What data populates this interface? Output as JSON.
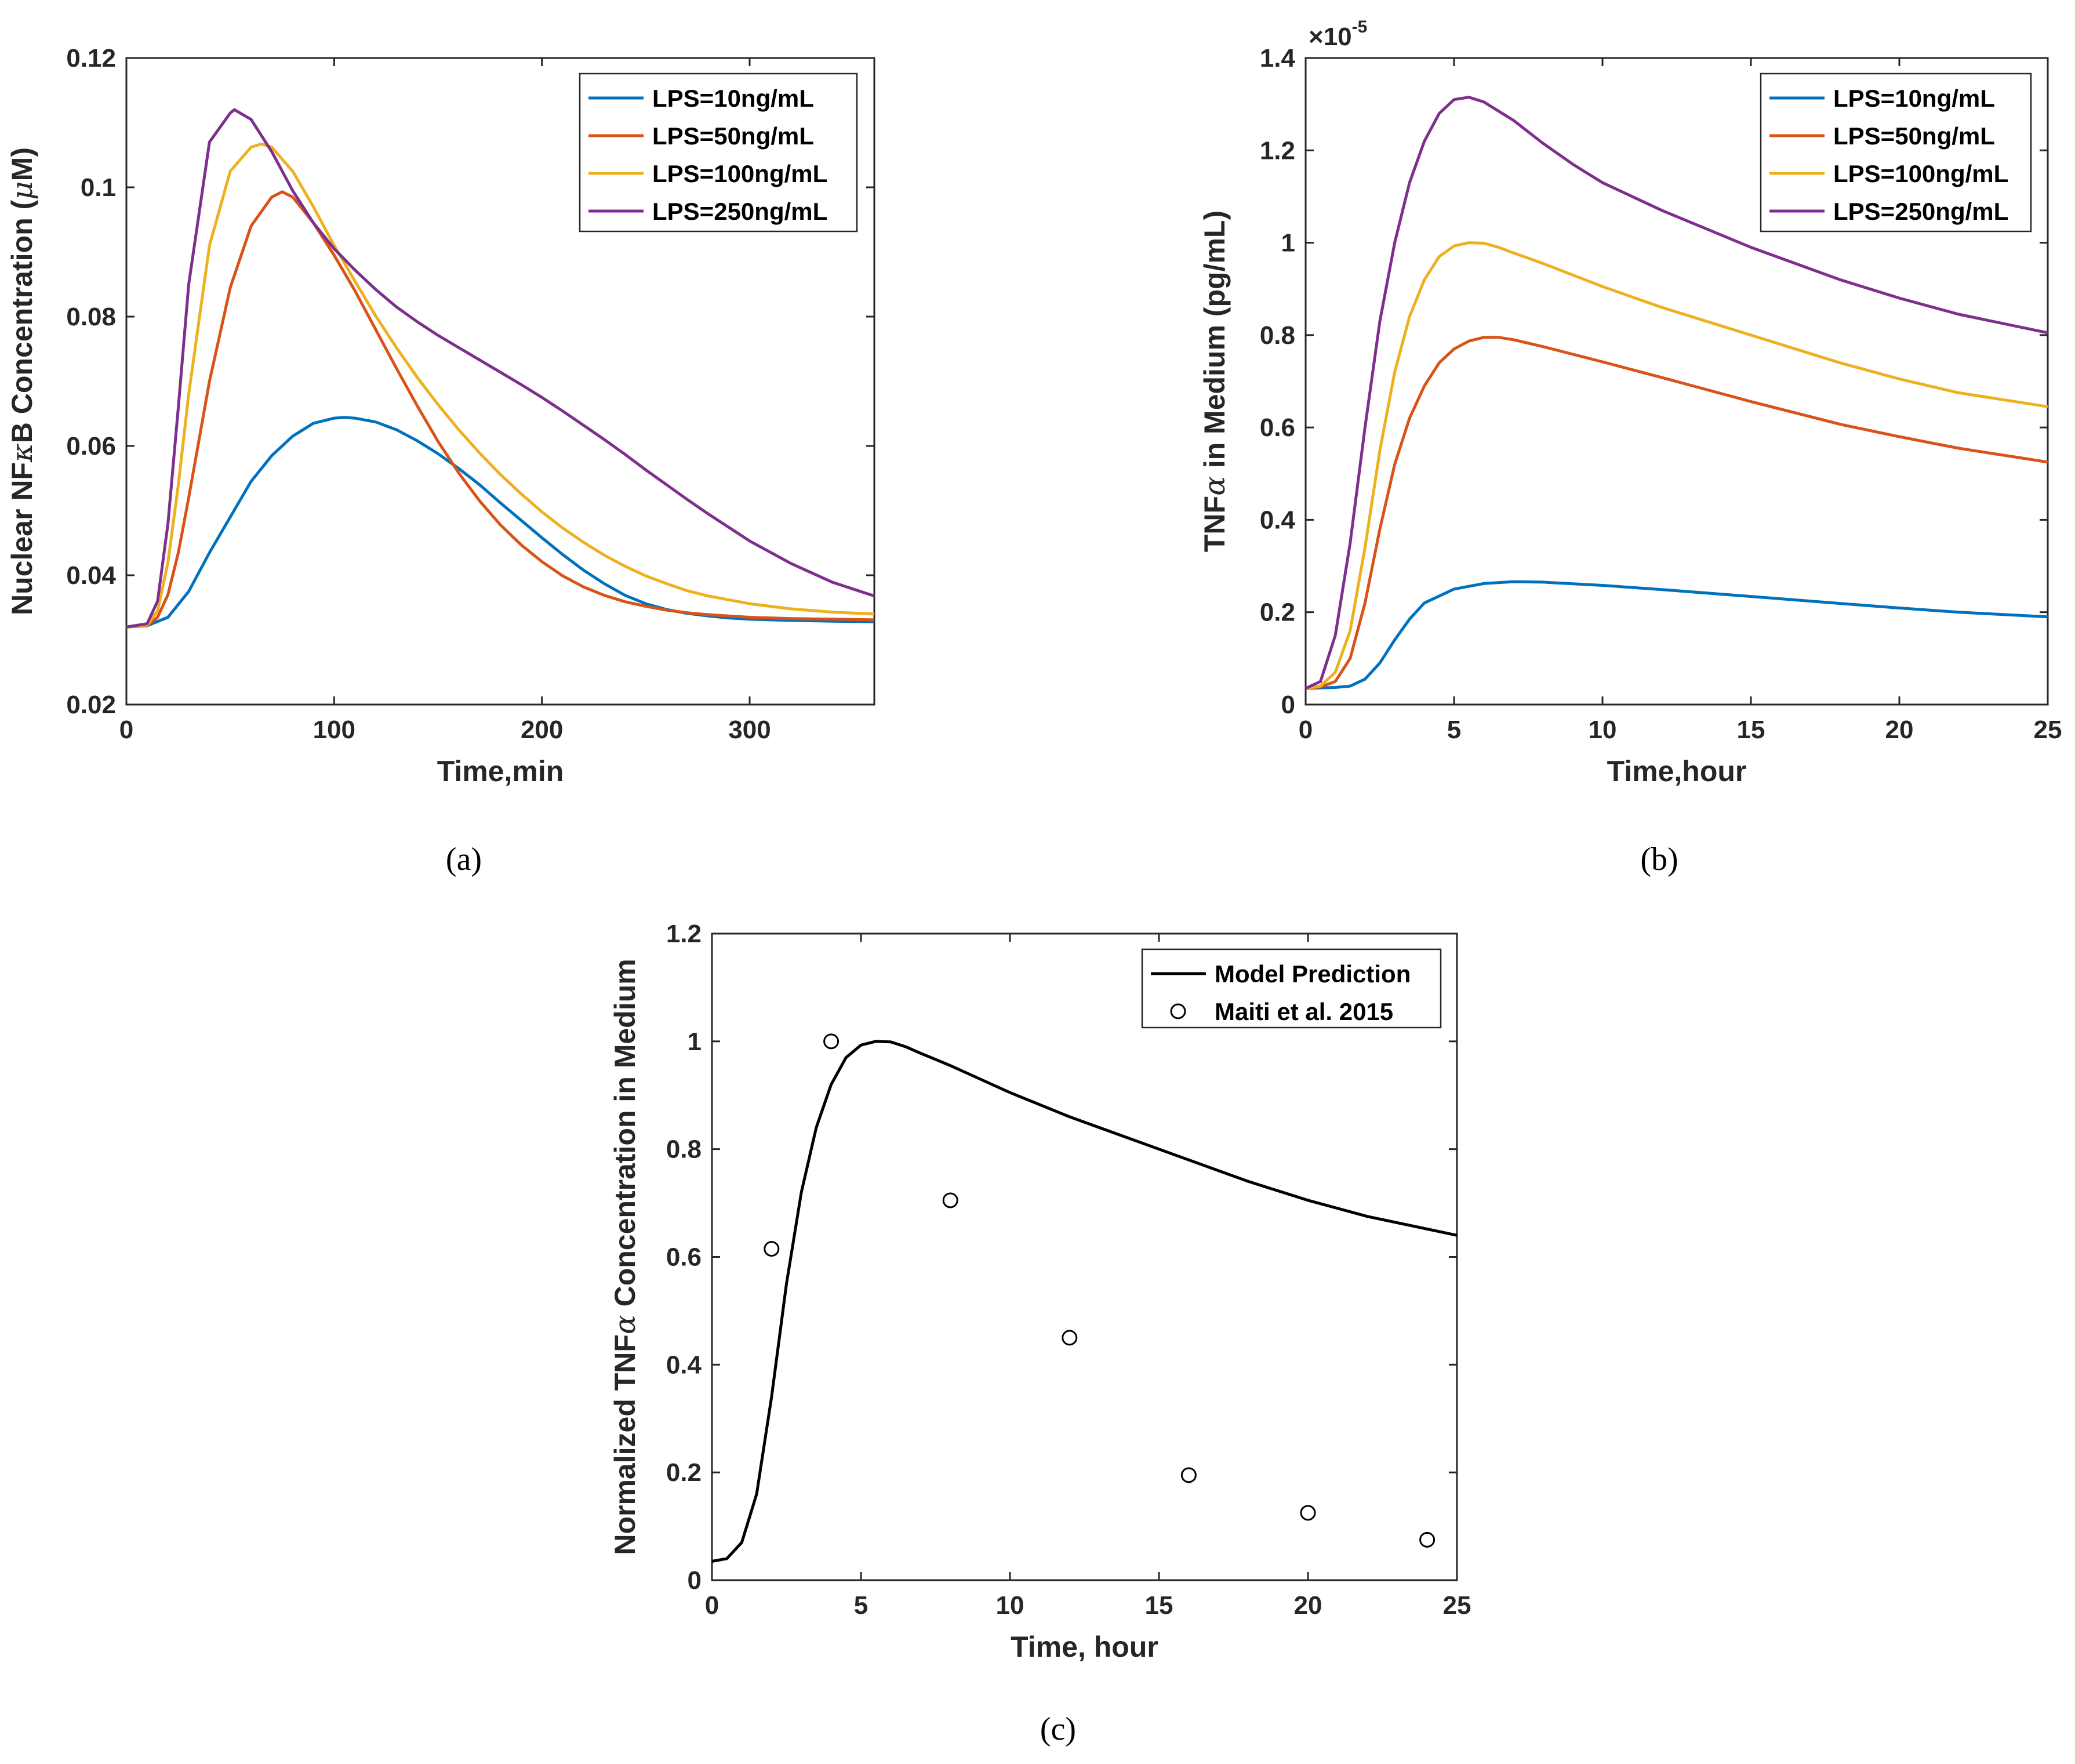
{
  "chart_data": [
    {
      "id": "a",
      "type": "line",
      "caption": "(a)",
      "xlabel": "Time,min",
      "ylabel_parts": [
        "Nuclear NF",
        "κ",
        "B Concentration (",
        "μ",
        "M)"
      ],
      "xlim": [
        0,
        360
      ],
      "ylim": [
        0.02,
        0.12
      ],
      "xticks": [
        0,
        100,
        200,
        300
      ],
      "yticks": [
        0.02,
        0.04,
        0.06,
        0.08,
        0.1,
        0.12
      ],
      "xtick_labels": [
        "0",
        "100",
        "200",
        "300"
      ],
      "ytick_labels": [
        "0.02",
        "0.04",
        "0.06",
        "0.08",
        "0.1",
        "0.12"
      ],
      "legend_position": "top-right",
      "series": [
        {
          "name": "LPS=10ng/mL",
          "color": "#0072BD",
          "x": [
            0,
            10,
            20,
            30,
            40,
            50,
            60,
            70,
            80,
            90,
            100,
            105,
            110,
            120,
            130,
            140,
            150,
            160,
            170,
            180,
            190,
            200,
            210,
            220,
            230,
            240,
            250,
            260,
            270,
            280,
            290,
            300,
            320,
            340,
            360
          ],
          "y": [
            0.032,
            0.0322,
            0.0335,
            0.0375,
            0.0435,
            0.049,
            0.0545,
            0.0585,
            0.0615,
            0.0635,
            0.0643,
            0.0644,
            0.0643,
            0.0637,
            0.0625,
            0.0608,
            0.0588,
            0.0565,
            0.054,
            0.0512,
            0.0485,
            0.0458,
            0.0432,
            0.0408,
            0.0387,
            0.0369,
            0.0356,
            0.0347,
            0.0341,
            0.0337,
            0.0334,
            0.0332,
            0.033,
            0.0329,
            0.0328
          ]
        },
        {
          "name": "LPS=50ng/mL",
          "color": "#D95319",
          "x": [
            0,
            10,
            15,
            20,
            25,
            30,
            40,
            50,
            60,
            70,
            75,
            80,
            90,
            100,
            110,
            120,
            130,
            140,
            150,
            160,
            170,
            180,
            190,
            200,
            210,
            220,
            230,
            240,
            250,
            260,
            270,
            280,
            300,
            320,
            340,
            360
          ],
          "y": [
            0.032,
            0.0322,
            0.0335,
            0.037,
            0.0435,
            0.052,
            0.07,
            0.0845,
            0.094,
            0.0985,
            0.0993,
            0.0985,
            0.0945,
            0.0895,
            0.084,
            0.078,
            0.072,
            0.0662,
            0.0607,
            0.0558,
            0.0515,
            0.0478,
            0.0447,
            0.0421,
            0.0399,
            0.0382,
            0.0369,
            0.0359,
            0.0352,
            0.0346,
            0.0342,
            0.0339,
            0.0335,
            0.0333,
            0.0332,
            0.0331
          ]
        },
        {
          "name": "LPS=100ng/mL",
          "color": "#EDB120",
          "x": [
            0,
            10,
            15,
            20,
            25,
            30,
            40,
            50,
            60,
            65,
            70,
            80,
            90,
            100,
            110,
            120,
            130,
            140,
            150,
            160,
            170,
            180,
            190,
            200,
            210,
            220,
            230,
            240,
            250,
            260,
            270,
            280,
            300,
            320,
            340,
            360
          ],
          "y": [
            0.032,
            0.0323,
            0.0345,
            0.042,
            0.054,
            0.068,
            0.091,
            0.1025,
            0.1062,
            0.1067,
            0.1062,
            0.1025,
            0.097,
            0.091,
            0.0855,
            0.0801,
            0.0752,
            0.0706,
            0.0664,
            0.0625,
            0.0589,
            0.0556,
            0.0526,
            0.0498,
            0.0473,
            0.0451,
            0.0431,
            0.0414,
            0.0399,
            0.0387,
            0.0376,
            0.0368,
            0.0356,
            0.0348,
            0.0343,
            0.034
          ]
        },
        {
          "name": "LPS=250ng/mL",
          "color": "#7E2F8E",
          "x": [
            0,
            10,
            15,
            20,
            25,
            30,
            40,
            50,
            52,
            60,
            70,
            80,
            90,
            100,
            110,
            120,
            130,
            140,
            150,
            160,
            170,
            180,
            190,
            200,
            210,
            220,
            230,
            240,
            250,
            260,
            270,
            280,
            300,
            320,
            340,
            360
          ],
          "y": [
            0.032,
            0.0325,
            0.036,
            0.048,
            0.066,
            0.085,
            0.107,
            0.1115,
            0.112,
            0.1105,
            0.1055,
            0.0995,
            0.0945,
            0.0905,
            0.0872,
            0.0842,
            0.0815,
            0.0792,
            0.0771,
            0.0752,
            0.0733,
            0.0714,
            0.0695,
            0.0675,
            0.0654,
            0.0632,
            0.061,
            0.0587,
            0.0563,
            0.054,
            0.0517,
            0.0495,
            0.0453,
            0.0418,
            0.0389,
            0.0368
          ]
        }
      ]
    },
    {
      "id": "b",
      "type": "line",
      "caption": "(b)",
      "xlabel": "Time,hour",
      "ylabel_parts": [
        "TNF",
        "α",
        " in Medium (pg/mL)"
      ],
      "y_multiplier": "×10",
      "y_multiplier_exp": "-5",
      "xlim": [
        0,
        25
      ],
      "ylim": [
        0,
        1.4
      ],
      "xticks": [
        0,
        5,
        10,
        15,
        20,
        25
      ],
      "yticks": [
        0,
        0.2,
        0.4,
        0.6,
        0.8,
        1,
        1.2,
        1.4
      ],
      "xtick_labels": [
        "0",
        "5",
        "10",
        "15",
        "20",
        "25"
      ],
      "ytick_labels": [
        "0",
        "0.2",
        "0.4",
        "0.6",
        "0.8",
        "1",
        "1.2",
        "1.4"
      ],
      "legend_position": "top-right",
      "series": [
        {
          "name": "LPS=10ng/mL",
          "color": "#0072BD",
          "x": [
            0,
            0.5,
            1,
            1.5,
            2,
            2.5,
            3,
            3.5,
            4,
            5,
            6,
            7,
            8,
            10,
            12,
            15,
            18,
            20,
            22,
            25
          ],
          "y": [
            0.035,
            0.036,
            0.037,
            0.04,
            0.055,
            0.09,
            0.14,
            0.185,
            0.22,
            0.25,
            0.262,
            0.266,
            0.265,
            0.258,
            0.249,
            0.234,
            0.219,
            0.209,
            0.2,
            0.19
          ]
        },
        {
          "name": "LPS=50ng/mL",
          "color": "#D95319",
          "x": [
            0,
            0.5,
            1,
            1.5,
            2,
            2.5,
            3,
            3.5,
            4,
            4.5,
            5,
            5.5,
            6,
            6.5,
            7,
            8,
            10,
            12,
            15,
            18,
            20,
            22,
            25
          ],
          "y": [
            0.035,
            0.038,
            0.05,
            0.1,
            0.22,
            0.38,
            0.52,
            0.62,
            0.69,
            0.74,
            0.77,
            0.787,
            0.795,
            0.795,
            0.79,
            0.775,
            0.742,
            0.708,
            0.656,
            0.607,
            0.58,
            0.555,
            0.525
          ]
        },
        {
          "name": "LPS=100ng/mL",
          "color": "#EDB120",
          "x": [
            0,
            0.5,
            1,
            1.5,
            2,
            2.5,
            3,
            3.5,
            4,
            4.5,
            5,
            5.5,
            6,
            6.5,
            7,
            8,
            10,
            12,
            15,
            18,
            20,
            22,
            25
          ],
          "y": [
            0.035,
            0.04,
            0.07,
            0.16,
            0.34,
            0.55,
            0.72,
            0.84,
            0.92,
            0.97,
            0.993,
            1.0,
            0.999,
            0.99,
            0.978,
            0.955,
            0.905,
            0.86,
            0.8,
            0.74,
            0.705,
            0.675,
            0.645
          ]
        },
        {
          "name": "LPS=250ng/mL",
          "color": "#7E2F8E",
          "x": [
            0,
            0.5,
            1,
            1.5,
            2,
            2.5,
            3,
            3.5,
            4,
            4.5,
            5,
            5.5,
            6,
            7,
            8,
            9,
            10,
            12,
            15,
            18,
            20,
            22,
            25
          ],
          "y": [
            0.035,
            0.05,
            0.15,
            0.35,
            0.6,
            0.83,
            1.0,
            1.13,
            1.22,
            1.28,
            1.31,
            1.315,
            1.305,
            1.265,
            1.215,
            1.17,
            1.13,
            1.07,
            0.99,
            0.92,
            0.88,
            0.845,
            0.805
          ]
        }
      ]
    },
    {
      "id": "c",
      "type": "line",
      "caption": "(c)",
      "xlabel": "Time, hour",
      "ylabel_parts": [
        "Normalized TNF",
        "α",
        " Concentration in Medium"
      ],
      "xlim": [
        0,
        25
      ],
      "ylim": [
        0,
        1.2
      ],
      "xticks": [
        0,
        5,
        10,
        15,
        20,
        25
      ],
      "yticks": [
        0,
        0.2,
        0.4,
        0.6,
        0.8,
        1,
        1.2
      ],
      "xtick_labels": [
        "0",
        "5",
        "10",
        "15",
        "20",
        "25"
      ],
      "ytick_labels": [
        "0",
        "0.2",
        "0.4",
        "0.6",
        "0.8",
        "1",
        "1.2"
      ],
      "legend_position": "top-right",
      "series": [
        {
          "name": "Model Prediction",
          "color": "#000000",
          "kind": "line",
          "x": [
            0,
            0.5,
            1,
            1.5,
            2,
            2.5,
            3,
            3.5,
            4,
            4.5,
            5,
            5.5,
            6,
            6.5,
            7,
            8,
            10,
            12,
            15,
            18,
            20,
            22,
            25
          ],
          "y": [
            0.035,
            0.04,
            0.07,
            0.16,
            0.34,
            0.55,
            0.72,
            0.84,
            0.92,
            0.97,
            0.993,
            1.0,
            0.999,
            0.99,
            0.978,
            0.955,
            0.905,
            0.86,
            0.8,
            0.74,
            0.705,
            0.675,
            0.64
          ]
        },
        {
          "name": "Maiti et al. 2015",
          "color": "#000000",
          "kind": "marker",
          "x": [
            2,
            4,
            8,
            12,
            16,
            20,
            24
          ],
          "y": [
            0.615,
            1.0,
            0.705,
            0.45,
            0.195,
            0.125,
            0.075
          ]
        }
      ]
    }
  ]
}
